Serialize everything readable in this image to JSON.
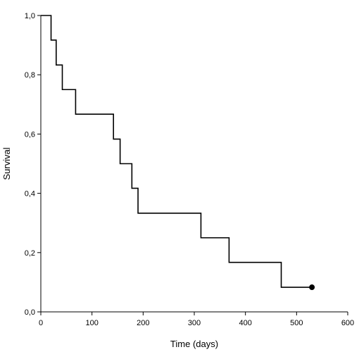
{
  "chart_data": {
    "type": "line",
    "subtype": "step",
    "xlabel": "Time (days)",
    "ylabel": "Survival",
    "xlim": [
      0,
      600
    ],
    "ylim": [
      0,
      1.0
    ],
    "x_ticks": [
      "0",
      "100",
      "200",
      "300",
      "400",
      "500",
      "600"
    ],
    "y_ticks": [
      "0,0",
      "0,2",
      "0,4",
      "0,6",
      "0,8",
      "1,0"
    ],
    "grid": false,
    "series": [
      {
        "color": "#000000",
        "x": [
          0,
          20,
          30,
          42,
          68,
          142,
          155,
          178,
          190,
          313,
          368,
          470,
          530
        ],
        "y": [
          1.0,
          0.917,
          0.833,
          0.75,
          0.667,
          0.583,
          0.5,
          0.417,
          0.333,
          0.25,
          0.167,
          0.083,
          0.083
        ],
        "censored": [
          {
            "x": 530,
            "y": 0.083
          }
        ]
      }
    ]
  }
}
